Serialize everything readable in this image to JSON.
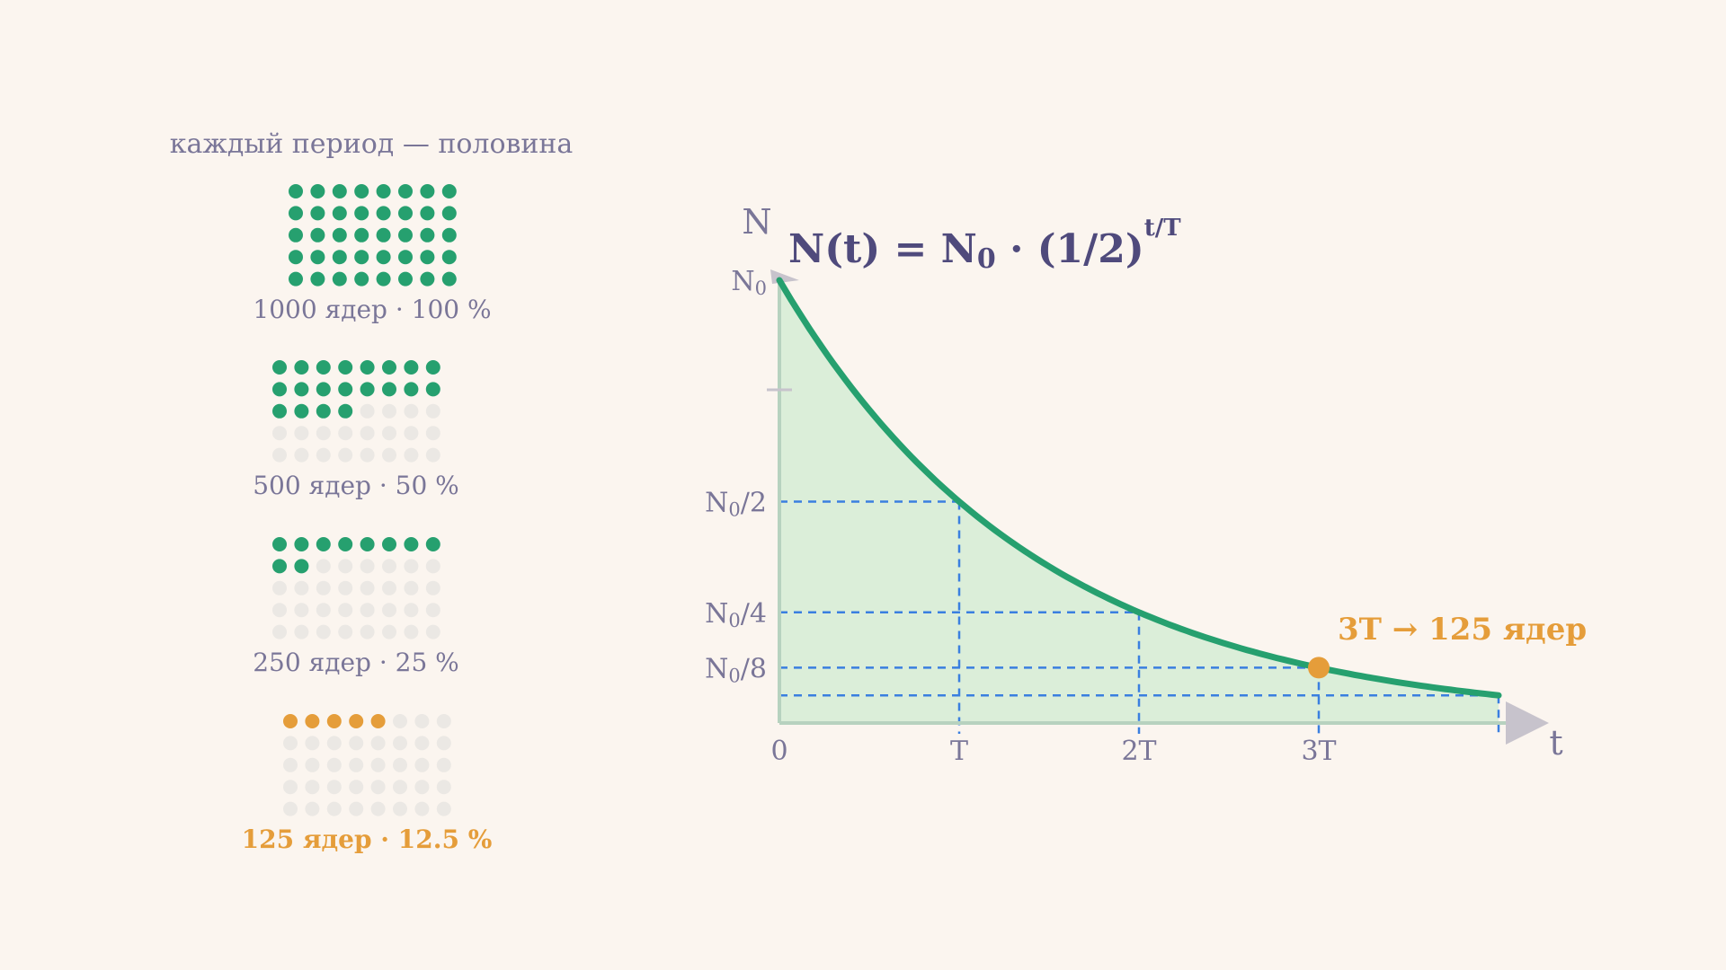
{
  "left_panel": {
    "caption": "каждый период — половина",
    "groups": [
      {
        "label": "1000 ядер · 100 %",
        "filled": 40,
        "accent": false
      },
      {
        "label": "500 ядер · 50 %",
        "filled": 20,
        "accent": false
      },
      {
        "label": "250 ядер · 25 %",
        "filled": 10,
        "accent": false
      },
      {
        "label": "125 ядер · 12.5 %",
        "filled": 5,
        "accent": true
      }
    ]
  },
  "graph": {
    "y_axis_label": "N",
    "x_axis_label": "t",
    "formula": {
      "lhs": "N(t) = N",
      "sub": "0",
      "rhs": " · (1/2)",
      "exponent": "t/T"
    },
    "y_ticks": [
      {
        "base": "N",
        "sub": "0",
        "suffix": "",
        "fraction": 1
      },
      {
        "base": "N",
        "sub": "0",
        "suffix": "/2",
        "fraction": 0.5
      },
      {
        "base": "N",
        "sub": "0",
        "suffix": "/4",
        "fraction": 0.25
      },
      {
        "base": "N",
        "sub": "0",
        "suffix": "/8",
        "fraction": 0.125
      }
    ],
    "x_ticks": [
      {
        "label": "0",
        "periods": 0
      },
      {
        "label": "T",
        "periods": 1
      },
      {
        "label": "2T",
        "periods": 2
      },
      {
        "label": "3T",
        "periods": 3
      }
    ],
    "highlight": {
      "periods": 3,
      "label": "3T → 125 ядер"
    },
    "curve_end_periods": 4
  },
  "colors": {
    "background": "#fbf5ef",
    "green": "#26a06f",
    "green_fill": "#dbeed9",
    "empty_dot": "#ebe8e4",
    "accent": "#e59d3a",
    "guide": "#3a7fe0",
    "axis": "#c7c3cc",
    "text_muted": "#7a7698",
    "text_title": "#4f4a7c"
  }
}
